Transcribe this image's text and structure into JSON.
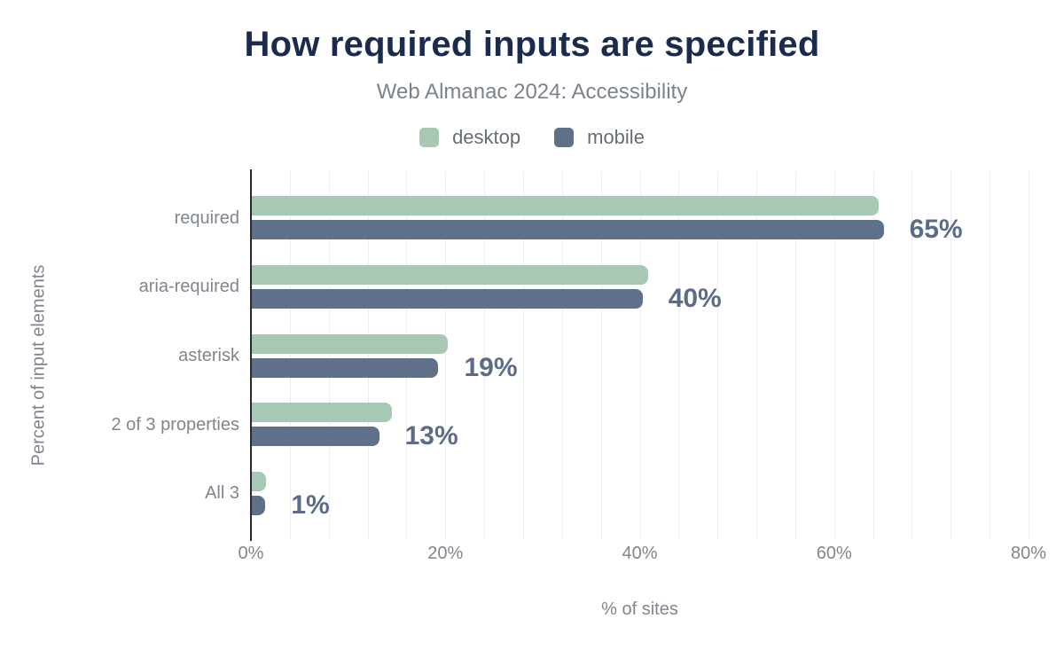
{
  "header": {
    "title": "How required inputs are specified",
    "subtitle": "Web Almanac 2024: Accessibility"
  },
  "legend": [
    {
      "label": "desktop",
      "swatch_icon": "rounded-square",
      "color": "#a6c8b4"
    },
    {
      "label": "mobile",
      "swatch_icon": "rounded-square",
      "color": "#5f7189"
    }
  ],
  "chart_data": {
    "type": "bar",
    "orientation": "horizontal",
    "title": "How required inputs are specified",
    "subtitle": "Web Almanac 2024: Accessibility",
    "categories": [
      "required",
      "aria-required",
      "asterisk",
      "2 of 3 properties",
      "All 3"
    ],
    "series": [
      {
        "name": "desktop",
        "color": "#a6c8b4",
        "values": [
          64.5,
          40.8,
          20.2,
          14.4,
          1.5
        ]
      },
      {
        "name": "mobile",
        "color": "#5f7189",
        "values": [
          65.0,
          40.2,
          19.2,
          13.1,
          1.4
        ]
      }
    ],
    "value_labels": [
      "65%",
      "40%",
      "19%",
      "13%",
      "1%"
    ],
    "xlabel": "% of sites",
    "ylabel": "Percent of input elements",
    "xlim": [
      0,
      80
    ],
    "x_ticks": [
      0,
      20,
      40,
      60,
      80
    ],
    "x_tick_labels": [
      "0%",
      "20%",
      "40%",
      "60%",
      "80%"
    ],
    "grid": "vertical minor gridlines every 4%",
    "legend_position": "top-center"
  },
  "colors": {
    "background": "#ffffff",
    "title": "#1a2b4d",
    "subtitle": "#7d838c",
    "legend_text": "#666d76",
    "axis_text": "#7f868f",
    "value_label": "#5a6c88",
    "axis_line": "#2b2b2b",
    "gridline": "#ededf0",
    "desktop": "#a6c8b4",
    "mobile": "#5f7189"
  }
}
